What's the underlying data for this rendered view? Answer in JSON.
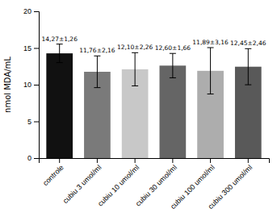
{
  "chart_data": {
    "type": "bar",
    "categories": [
      "controle",
      "cubiu 3 umol/ml",
      "cubiu 10 umol/ml",
      "cubiu 30 umol/ml",
      "cubiu 100 umol/ml",
      "cubiu 300 umol/ml"
    ],
    "values": [
      14.27,
      11.76,
      12.1,
      12.6,
      11.89,
      12.45
    ],
    "errors": [
      1.26,
      2.16,
      2.26,
      1.66,
      3.16,
      2.46
    ],
    "value_labels": [
      "14,27±1,26",
      "11,76±2,16",
      "12,10±2,26",
      "12,60±1,66",
      "11,89±3,16",
      "12,45±2,46"
    ],
    "colors": [
      "#111111",
      "#7a7a7a",
      "#c8c8c8",
      "#656565",
      "#adadad",
      "#595959"
    ],
    "ylabel": "nmol MDA/mL",
    "ylim": [
      0,
      20
    ],
    "yticks": [
      0,
      5,
      10,
      15,
      20
    ]
  }
}
